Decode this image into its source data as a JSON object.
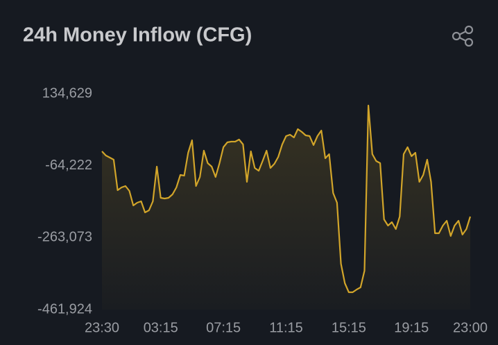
{
  "chart_data": {
    "type": "area",
    "title": "24h Money Inflow (CFG)",
    "color": "#d2a52a",
    "x": [
      "23:30",
      null,
      null,
      null,
      null,
      null,
      null,
      null,
      null,
      null,
      null,
      null,
      null,
      null,
      null,
      "03:15",
      null,
      null,
      null,
      null,
      null,
      null,
      null,
      null,
      null,
      null,
      null,
      null,
      null,
      null,
      null,
      "07:15",
      null,
      null,
      null,
      null,
      null,
      null,
      null,
      null,
      null,
      null,
      null,
      null,
      null,
      null,
      null,
      "11:15",
      null,
      null,
      null,
      null,
      null,
      null,
      null,
      null,
      null,
      null,
      null,
      null,
      null,
      null,
      null,
      "15:15",
      null,
      null,
      null,
      null,
      null,
      null,
      null,
      null,
      null,
      null,
      null,
      null,
      null,
      null,
      null,
      "19:15",
      null,
      null,
      null,
      null,
      null,
      null,
      null,
      null,
      null,
      null,
      null,
      null,
      null,
      null,
      "23:00"
    ],
    "values": [
      -24600,
      -36100,
      -41900,
      -47600,
      -132000,
      -124400,
      -120500,
      -133900,
      -174200,
      -166600,
      -162700,
      -193400,
      -187700,
      -162700,
      -66800,
      -153100,
      -155000,
      -153100,
      -143500,
      -124400,
      -89800,
      -91700,
      -28400,
      6100,
      -120500,
      -95600,
      -22700,
      -57200,
      -66800,
      -95600,
      -57200,
      -13100,
      300,
      2300,
      2300,
      8000,
      -5400,
      -109000,
      -24600,
      -70600,
      -78300,
      -51500,
      -22700,
      -70600,
      -59100,
      -39900,
      -5400,
      17600,
      21400,
      13800,
      36800,
      29100,
      19500,
      17600,
      -7300,
      17600,
      33000,
      -43800,
      -32300,
      -139700,
      -166600,
      -335400,
      -389100,
      -414000,
      -414000,
      -406400,
      -400600,
      -354600,
      102000,
      -32300,
      -51500,
      -57200,
      -212600,
      -229900,
      -220300,
      -239500,
      -204900,
      -32300,
      -13100,
      -38000,
      -28400,
      -109000,
      -89800,
      -47600,
      -109000,
      -251000,
      -251000,
      -229900,
      -216400,
      -258600,
      -229900,
      -216400,
      -254800,
      -239500,
      -204900
    ],
    "ylim": [
      -461924,
      134629
    ],
    "yticks": [
      {
        "value": 134629,
        "label": "134,629"
      },
      {
        "value": -64222,
        "label": "-64,222"
      },
      {
        "value": -263073,
        "label": "-263,073"
      },
      {
        "value": -461924,
        "label": "-461,924"
      }
    ]
  }
}
